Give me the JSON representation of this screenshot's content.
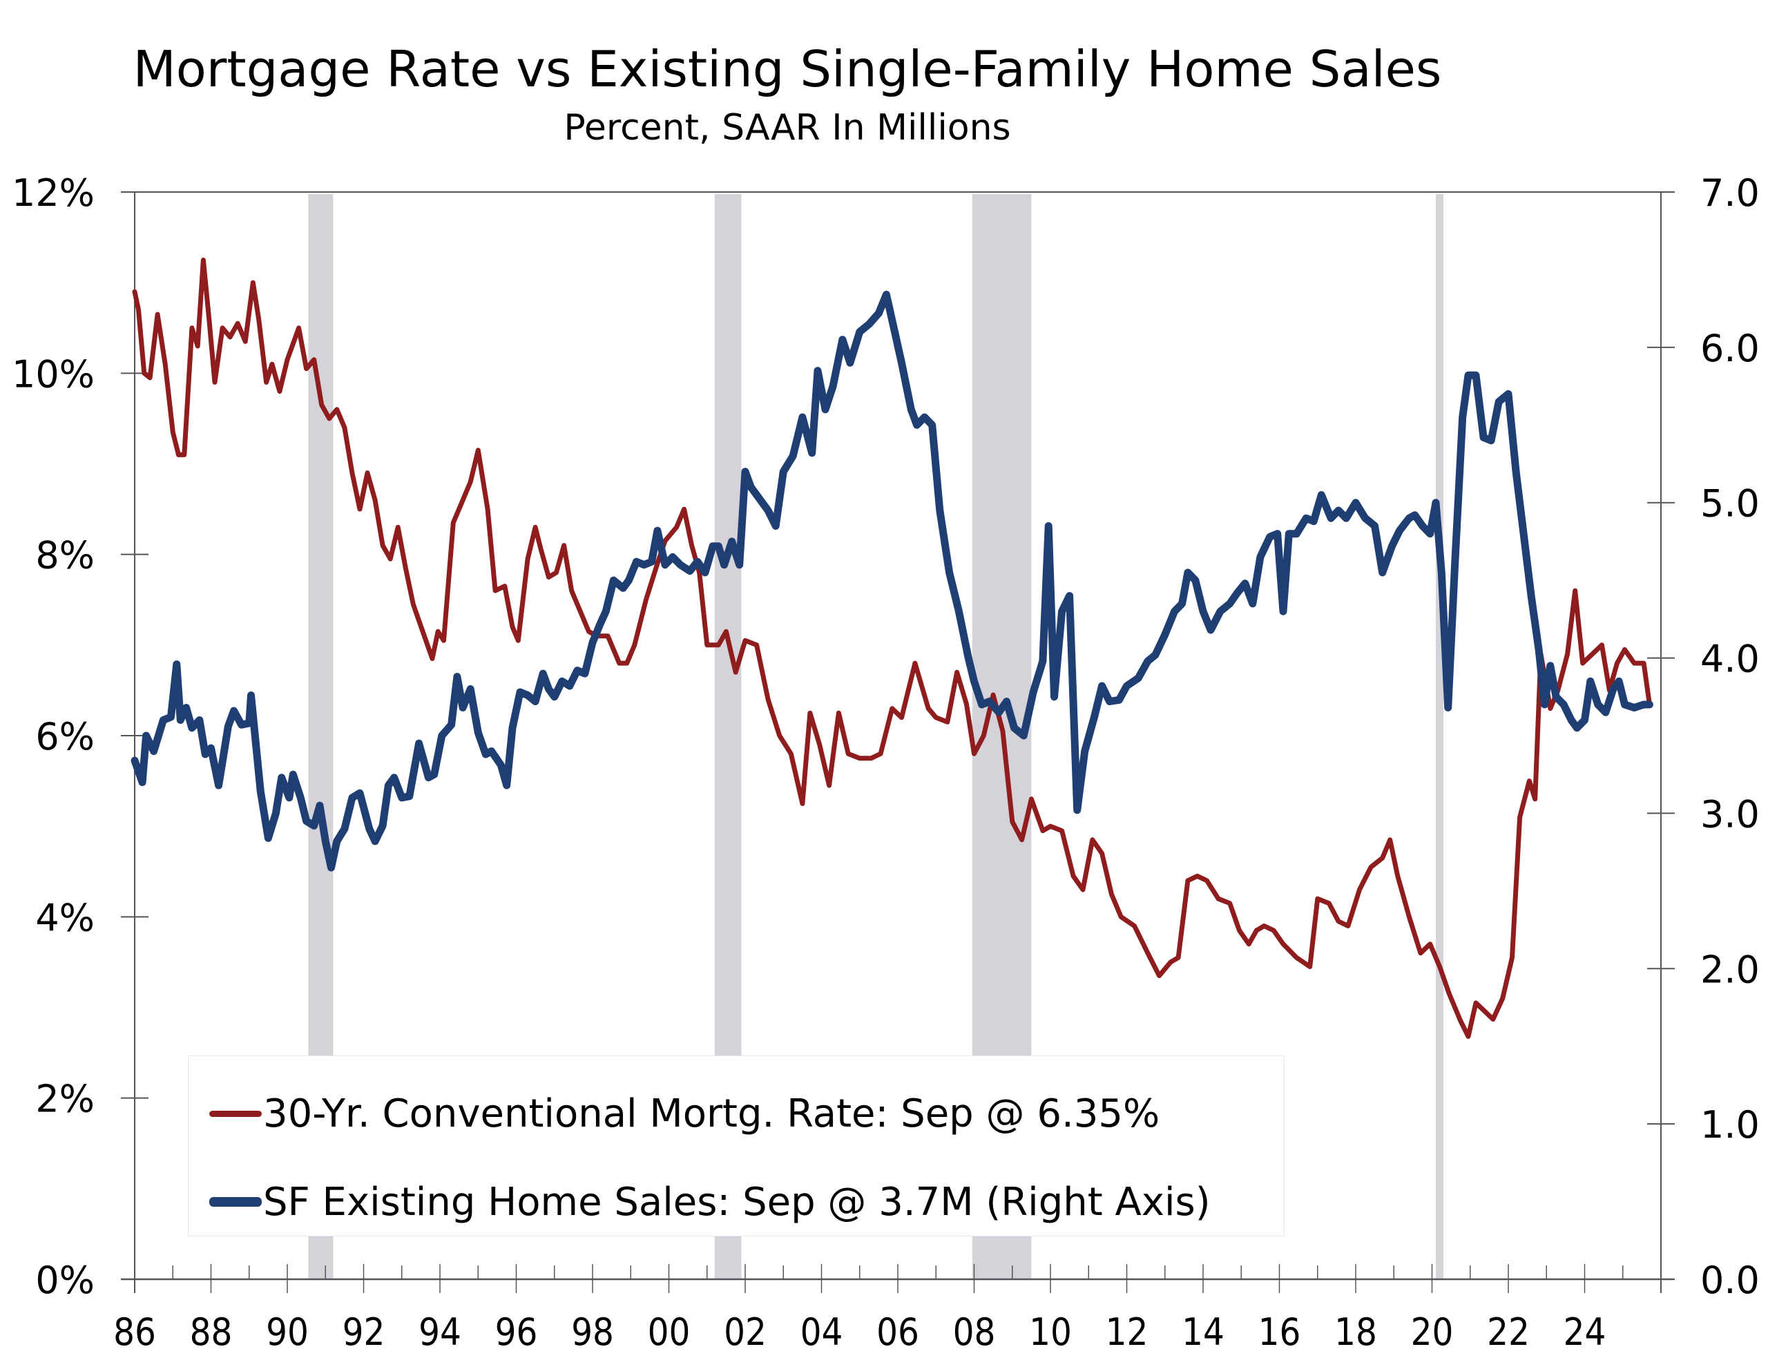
{
  "chart_data": {
    "type": "line",
    "title": "Mortgage Rate vs Existing Single-Family Home Sales",
    "subtitle": "Percent, SAAR In Millions",
    "xlabel": "",
    "ylabel_left": "Percent",
    "ylabel_right": "SAAR In Millions",
    "xlim": [
      1986,
      2026
    ],
    "ylim_left": [
      0,
      12
    ],
    "ylim_right": [
      0,
      7
    ],
    "grid": false,
    "legend_position": "bottom-left",
    "x_tick_labels": [
      "86",
      "88",
      "90",
      "92",
      "94",
      "96",
      "98",
      "00",
      "02",
      "04",
      "06",
      "08",
      "10",
      "12",
      "14",
      "16",
      "18",
      "20",
      "22",
      "24"
    ],
    "x_tick_years": [
      1986,
      1988,
      1990,
      1992,
      1994,
      1996,
      1998,
      2000,
      2002,
      2004,
      2006,
      2008,
      2010,
      2012,
      2014,
      2016,
      2018,
      2020,
      2022,
      2024
    ],
    "y_left_ticks": [
      0,
      2,
      4,
      6,
      8,
      10,
      12
    ],
    "y_left_tick_labels": [
      "0%",
      "2%",
      "4%",
      "6%",
      "8%",
      "10%",
      "12%"
    ],
    "y_right_ticks": [
      0,
      1,
      2,
      3,
      4,
      5,
      6,
      7
    ],
    "y_right_tick_labels": [
      "0.0",
      "1.0",
      "2.0",
      "3.0",
      "4.0",
      "5.0",
      "6.0",
      "7.0"
    ],
    "recessions": [
      {
        "start": 1990.55,
        "end": 1991.2
      },
      {
        "start": 2001.2,
        "end": 2001.9
      },
      {
        "start": 2007.95,
        "end": 2009.5
      },
      {
        "start": 2020.1,
        "end": 2020.3
      }
    ],
    "colors": {
      "mortgage_rate": "#8f1d1d",
      "home_sales": "#1f3f73",
      "recession_shade": "#d5d2da",
      "axis": "#555555"
    },
    "series": [
      {
        "name": "30-Yr. Conventional Mortg. Rate",
        "axis": "left",
        "units": "percent",
        "x": [
          1986.0,
          1986.1,
          1986.25,
          1986.4,
          1986.6,
          1986.8,
          1987.0,
          1987.15,
          1987.3,
          1987.5,
          1987.65,
          1987.8,
          1987.95,
          1988.1,
          1988.3,
          1988.5,
          1988.7,
          1988.9,
          1989.1,
          1989.25,
          1989.45,
          1989.6,
          1989.8,
          1990.0,
          1990.3,
          1990.5,
          1990.7,
          1990.9,
          1991.1,
          1991.3,
          1991.5,
          1991.7,
          1991.9,
          1992.1,
          1992.3,
          1992.5,
          1992.7,
          1992.9,
          1993.1,
          1993.3,
          1993.55,
          1993.8,
          1993.95,
          1994.1,
          1994.35,
          1994.55,
          1994.8,
          1995.0,
          1995.25,
          1995.45,
          1995.7,
          1995.9,
          1996.05,
          1996.3,
          1996.5,
          1996.65,
          1996.85,
          1997.05,
          1997.25,
          1997.45,
          1997.7,
          1997.9,
          1998.1,
          1998.4,
          1998.7,
          1998.9,
          1999.1,
          1999.4,
          1999.7,
          1999.9,
          2000.2,
          2000.4,
          2000.6,
          2000.8,
          2001.0,
          2001.3,
          2001.5,
          2001.75,
          2002.0,
          2002.3,
          2002.6,
          2002.9,
          2003.2,
          2003.5,
          2003.7,
          2003.95,
          2004.2,
          2004.45,
          2004.7,
          2005.0,
          2005.3,
          2005.55,
          2005.85,
          2006.1,
          2006.45,
          2006.8,
          2007.0,
          2007.3,
          2007.55,
          2007.8,
          2008.0,
          2008.25,
          2008.5,
          2008.75,
          2009.0,
          2009.25,
          2009.5,
          2009.8,
          2010.0,
          2010.3,
          2010.6,
          2010.85,
          2011.1,
          2011.35,
          2011.6,
          2011.85,
          2012.2,
          2012.55,
          2012.85,
          2013.15,
          2013.35,
          2013.6,
          2013.85,
          2014.1,
          2014.4,
          2014.7,
          2014.95,
          2015.2,
          2015.4,
          2015.6,
          2015.85,
          2016.1,
          2016.45,
          2016.8,
          2017.0,
          2017.3,
          2017.55,
          2017.8,
          2018.1,
          2018.4,
          2018.7,
          2018.9,
          2019.1,
          2019.4,
          2019.7,
          2019.95,
          2020.2,
          2020.45,
          2020.75,
          2020.95,
          2021.15,
          2021.4,
          2021.6,
          2021.85,
          2022.1,
          2022.3,
          2022.55,
          2022.7,
          2022.85,
          2023.1,
          2023.3,
          2023.55,
          2023.75,
          2023.95,
          2024.2,
          2024.45,
          2024.65,
          2024.85,
          2025.05,
          2025.3,
          2025.55,
          2025.7
        ],
        "values": [
          10.9,
          10.7,
          10.0,
          9.95,
          10.65,
          10.1,
          9.35,
          9.1,
          9.1,
          10.5,
          10.3,
          11.25,
          10.6,
          9.9,
          10.5,
          10.4,
          10.55,
          10.35,
          11.0,
          10.6,
          9.9,
          10.1,
          9.8,
          10.15,
          10.5,
          10.05,
          10.15,
          9.65,
          9.5,
          9.6,
          9.4,
          8.9,
          8.5,
          8.9,
          8.6,
          8.1,
          7.95,
          8.3,
          7.85,
          7.45,
          7.15,
          6.85,
          7.15,
          7.05,
          8.35,
          8.55,
          8.8,
          9.15,
          8.5,
          7.6,
          7.65,
          7.2,
          7.05,
          7.95,
          8.3,
          8.05,
          7.75,
          7.8,
          8.1,
          7.6,
          7.35,
          7.15,
          7.1,
          7.1,
          6.8,
          6.8,
          7.0,
          7.5,
          7.9,
          8.15,
          8.3,
          8.5,
          8.1,
          7.8,
          7.0,
          7.0,
          7.15,
          6.7,
          7.05,
          7.0,
          6.4,
          6.0,
          5.8,
          5.25,
          6.25,
          5.9,
          5.45,
          6.25,
          5.8,
          5.75,
          5.75,
          5.8,
          6.3,
          6.2,
          6.8,
          6.3,
          6.2,
          6.15,
          6.7,
          6.35,
          5.8,
          6.0,
          6.45,
          6.05,
          5.05,
          4.85,
          5.3,
          4.95,
          5.0,
          4.95,
          4.45,
          4.3,
          4.85,
          4.7,
          4.25,
          4.0,
          3.9,
          3.6,
          3.35,
          3.5,
          3.55,
          4.4,
          4.45,
          4.4,
          4.2,
          4.15,
          3.85,
          3.7,
          3.85,
          3.9,
          3.85,
          3.7,
          3.55,
          3.45,
          4.2,
          4.15,
          3.95,
          3.9,
          4.3,
          4.55,
          4.65,
          4.85,
          4.45,
          4.0,
          3.6,
          3.7,
          3.45,
          3.15,
          2.85,
          2.68,
          3.05,
          2.95,
          2.87,
          3.1,
          3.55,
          5.1,
          5.5,
          5.3,
          6.9,
          6.3,
          6.5,
          6.9,
          7.6,
          6.8,
          6.9,
          7.0,
          6.5,
          6.8,
          6.95,
          6.8,
          6.8,
          6.35
        ]
      },
      {
        "name": "SF Existing Home Sales",
        "axis": "right",
        "units": "millions SAAR",
        "x": [
          1986.0,
          1986.2,
          1986.3,
          1986.5,
          1986.75,
          1986.95,
          1987.1,
          1987.2,
          1987.35,
          1987.5,
          1987.7,
          1987.85,
          1988.0,
          1988.2,
          1988.45,
          1988.6,
          1988.8,
          1989.0,
          1989.05,
          1989.3,
          1989.5,
          1989.7,
          1989.85,
          1990.05,
          1990.15,
          1990.35,
          1990.5,
          1990.7,
          1990.85,
          1991.0,
          1991.15,
          1991.3,
          1991.5,
          1991.7,
          1991.9,
          1992.15,
          1992.3,
          1992.5,
          1992.65,
          1992.8,
          1993.0,
          1993.2,
          1993.45,
          1993.7,
          1993.85,
          1994.05,
          1994.3,
          1994.45,
          1994.6,
          1994.8,
          1995.0,
          1995.2,
          1995.35,
          1995.6,
          1995.75,
          1995.9,
          1996.1,
          1996.3,
          1996.5,
          1996.7,
          1996.85,
          1997.0,
          1997.2,
          1997.4,
          1997.6,
          1997.8,
          1998.0,
          1998.2,
          1998.35,
          1998.55,
          1998.8,
          1998.95,
          1999.15,
          1999.35,
          1999.55,
          1999.7,
          1999.9,
          2000.1,
          2000.3,
          2000.55,
          2000.75,
          2000.95,
          2001.15,
          2001.3,
          2001.45,
          2001.65,
          2001.85,
          2002.0,
          2002.15,
          2002.3,
          2002.6,
          2002.8,
          2003.0,
          2003.25,
          2003.5,
          2003.75,
          2003.9,
          2004.1,
          2004.3,
          2004.55,
          2004.75,
          2005.0,
          2005.25,
          2005.5,
          2005.7,
          2005.9,
          2006.1,
          2006.35,
          2006.5,
          2006.7,
          2006.9,
          2007.1,
          2007.35,
          2007.6,
          2007.85,
          2008.0,
          2008.2,
          2008.4,
          2008.65,
          2008.85,
          2009.05,
          2009.3,
          2009.55,
          2009.8,
          2009.95,
          2010.1,
          2010.3,
          2010.5,
          2010.7,
          2010.9,
          2011.15,
          2011.35,
          2011.55,
          2011.8,
          2012.0,
          2012.3,
          2012.55,
          2012.75,
          2013.0,
          2013.25,
          2013.45,
          2013.6,
          2013.8,
          2014.0,
          2014.2,
          2014.45,
          2014.7,
          2014.9,
          2015.1,
          2015.3,
          2015.5,
          2015.75,
          2015.95,
          2016.1,
          2016.25,
          2016.45,
          2016.7,
          2016.9,
          2017.1,
          2017.35,
          2017.55,
          2017.75,
          2018.0,
          2018.25,
          2018.5,
          2018.7,
          2018.95,
          2019.15,
          2019.4,
          2019.55,
          2019.75,
          2019.95,
          2020.1,
          2020.25,
          2020.42,
          2020.6,
          2020.8,
          2020.95,
          2021.15,
          2021.35,
          2021.55,
          2021.75,
          2022.0,
          2022.2,
          2022.4,
          2022.6,
          2022.8,
          2022.95,
          2023.1,
          2023.25,
          2023.45,
          2023.65,
          2023.8,
          2024.0,
          2024.15,
          2024.35,
          2024.55,
          2024.75,
          2024.9,
          2025.05,
          2025.3,
          2025.55,
          2025.7
        ],
        "values": [
          3.34,
          3.2,
          3.5,
          3.4,
          3.6,
          3.62,
          3.96,
          3.6,
          3.68,
          3.55,
          3.6,
          3.38,
          3.42,
          3.18,
          3.56,
          3.66,
          3.57,
          3.58,
          3.76,
          3.14,
          2.84,
          3.0,
          3.23,
          3.1,
          3.25,
          3.1,
          2.95,
          2.92,
          3.05,
          2.82,
          2.65,
          2.82,
          2.9,
          3.1,
          3.13,
          2.9,
          2.82,
          2.92,
          3.18,
          3.23,
          3.1,
          3.11,
          3.45,
          3.23,
          3.25,
          3.5,
          3.57,
          3.88,
          3.68,
          3.8,
          3.52,
          3.38,
          3.4,
          3.31,
          3.18,
          3.55,
          3.78,
          3.76,
          3.72,
          3.9,
          3.8,
          3.75,
          3.85,
          3.82,
          3.92,
          3.9,
          4.1,
          4.22,
          4.3,
          4.5,
          4.45,
          4.5,
          4.62,
          4.6,
          4.62,
          4.82,
          4.6,
          4.65,
          4.6,
          4.56,
          4.62,
          4.55,
          4.72,
          4.72,
          4.6,
          4.75,
          4.6,
          5.2,
          5.1,
          5.05,
          4.95,
          4.85,
          5.2,
          5.3,
          5.55,
          5.32,
          5.85,
          5.6,
          5.75,
          6.05,
          5.9,
          6.1,
          6.15,
          6.22,
          6.34,
          6.12,
          5.9,
          5.6,
          5.5,
          5.55,
          5.5,
          4.95,
          4.55,
          4.3,
          4.0,
          3.85,
          3.7,
          3.72,
          3.65,
          3.72,
          3.55,
          3.5,
          3.78,
          3.98,
          4.85,
          3.75,
          4.3,
          4.4,
          3.02,
          3.4,
          3.62,
          3.82,
          3.72,
          3.73,
          3.82,
          3.87,
          3.98,
          4.02,
          4.15,
          4.3,
          4.35,
          4.55,
          4.5,
          4.3,
          4.18,
          4.3,
          4.35,
          4.42,
          4.48,
          4.35,
          4.65,
          4.78,
          4.8,
          4.3,
          4.8,
          4.8,
          4.9,
          4.88,
          5.05,
          4.9,
          4.95,
          4.9,
          5.0,
          4.9,
          4.85,
          4.55,
          4.72,
          4.82,
          4.9,
          4.92,
          4.85,
          4.8,
          5.0,
          4.55,
          3.68,
          4.6,
          5.55,
          5.82,
          5.82,
          5.42,
          5.4,
          5.65,
          5.7,
          5.2,
          4.8,
          4.4,
          4.05,
          3.7,
          3.95,
          3.75,
          3.7,
          3.6,
          3.55,
          3.6,
          3.85,
          3.7,
          3.65,
          3.8,
          3.85,
          3.7,
          3.68,
          3.7,
          3.7
        ]
      }
    ]
  },
  "legend": {
    "items": [
      {
        "label": "30-Yr. Conventional Mortg. Rate: Sep @ 6.35%"
      },
      {
        "label": "SF Existing Home Sales: Sep @ 3.7M (Right Axis)"
      }
    ]
  }
}
